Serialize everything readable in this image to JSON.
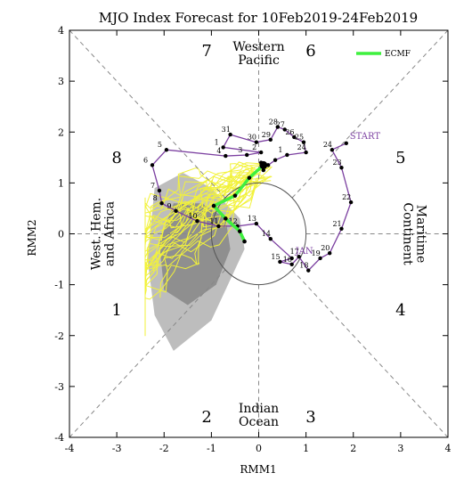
{
  "chart_data": {
    "type": "line",
    "title": "MJO Index Forecast for 10Feb2019-24Feb2019",
    "xlabel": "RMM1",
    "ylabel": "RMM2",
    "xlim": [
      -4,
      4
    ],
    "ylim": [
      -4,
      4
    ],
    "xticks": [
      -4,
      -3,
      -2,
      -1,
      0,
      1,
      2,
      3,
      4
    ],
    "yticks": [
      -4,
      -3,
      -2,
      -1,
      0,
      1,
      2,
      3,
      4
    ],
    "grid": false,
    "legend_position": "top-right",
    "phase_labels": [
      {
        "text": "1",
        "x": -3.0,
        "y": -1.5
      },
      {
        "text": "2",
        "x": -1.1,
        "y": -3.6
      },
      {
        "text": "3",
        "x": 1.1,
        "y": -3.6
      },
      {
        "text": "4",
        "x": 3.0,
        "y": -1.5
      },
      {
        "text": "5",
        "x": 3.0,
        "y": 1.5
      },
      {
        "text": "6",
        "x": 1.1,
        "y": 3.6
      },
      {
        "text": "7",
        "x": -1.1,
        "y": 3.6
      },
      {
        "text": "8",
        "x": -3.0,
        "y": 1.5
      }
    ],
    "region_labels": [
      {
        "lines": [
          "Western",
          "Pacific"
        ],
        "x": 0.0,
        "y": 3.55,
        "rotate": 0
      },
      {
        "lines": [
          "Indian",
          "Ocean"
        ],
        "x": 0.0,
        "y": -3.55,
        "rotate": 0
      },
      {
        "lines": [
          "West. Hem.",
          "and Africa"
        ],
        "x": -3.3,
        "y": 0.0,
        "rotate": -90
      },
      {
        "lines": [
          "Maritime",
          "Continent"
        ],
        "x": 3.3,
        "y": 0.0,
        "rotate": 90
      }
    ],
    "observed": {
      "color": "#7b3fa0",
      "points": [
        {
          "x": 1.85,
          "y": 1.78,
          "label": "START"
        },
        {
          "x": 1.55,
          "y": 1.65,
          "label": "24"
        },
        {
          "x": 1.75,
          "y": 1.3,
          "label": "23"
        },
        {
          "x": 1.95,
          "y": 0.62,
          "label": "22"
        },
        {
          "x": 1.75,
          "y": 0.1,
          "label": "21"
        },
        {
          "x": 1.5,
          "y": -0.38,
          "label": "20"
        },
        {
          "x": 1.3,
          "y": -0.48,
          "label": "19"
        },
        {
          "x": 1.05,
          "y": -0.72,
          "label": "18"
        },
        {
          "x": 0.85,
          "y": -0.45,
          "label": "17"
        },
        {
          "x": 0.7,
          "y": -0.6,
          "label": "16"
        },
        {
          "x": 0.45,
          "y": -0.55,
          "label": "15"
        },
        {
          "x": 0.7,
          "y": -0.48,
          "label": "JAN"
        },
        {
          "x": 0.25,
          "y": -0.1,
          "label": "14"
        },
        {
          "x": -0.05,
          "y": 0.2,
          "label": "13"
        },
        {
          "x": -0.45,
          "y": 0.15,
          "label": "12"
        },
        {
          "x": -0.85,
          "y": 0.15,
          "label": "11"
        },
        {
          "x": -1.3,
          "y": 0.25,
          "label": "10"
        },
        {
          "x": -1.75,
          "y": 0.45,
          "label": "9"
        },
        {
          "x": -2.05,
          "y": 0.6,
          "label": "8"
        },
        {
          "x": -2.1,
          "y": 0.85,
          "label": "7"
        },
        {
          "x": -2.25,
          "y": 1.35,
          "label": "6"
        },
        {
          "x": -1.95,
          "y": 1.65,
          "label": "5"
        },
        {
          "x": -0.7,
          "y": 1.53,
          "label": "4"
        },
        {
          "x": -0.25,
          "y": 1.55,
          "label": "3"
        },
        {
          "x": 0.05,
          "y": 1.6,
          "label": "2"
        },
        {
          "x": -0.75,
          "y": 1.7,
          "label": "1"
        },
        {
          "x": -0.6,
          "y": 1.95,
          "label": "31"
        },
        {
          "x": -0.05,
          "y": 1.8,
          "label": "30"
        },
        {
          "x": 0.25,
          "y": 1.85,
          "label": "29"
        },
        {
          "x": 0.4,
          "y": 2.1,
          "label": "28"
        },
        {
          "x": 0.55,
          "y": 2.05,
          "label": "27"
        },
        {
          "x": 0.75,
          "y": 1.9,
          "label": "26"
        },
        {
          "x": 0.95,
          "y": 1.8,
          "label": "25"
        },
        {
          "x": 1.0,
          "y": 1.6,
          "label": "24"
        },
        {
          "x": 0.6,
          "y": 1.55,
          "label": "1"
        },
        {
          "x": 0.35,
          "y": 1.45,
          "label": ""
        },
        {
          "x": 0.2,
          "y": 1.35,
          "label": ""
        },
        {
          "x": 0.05,
          "y": 1.4,
          "label": ""
        },
        {
          "x": 0.1,
          "y": 1.25,
          "label": ""
        }
      ]
    },
    "end_marker": {
      "x": 0.1,
      "y": 1.35
    },
    "series": [
      {
        "name": "ECMF",
        "color": "#3ef03e",
        "points": [
          {
            "x": 0.1,
            "y": 1.35
          },
          {
            "x": -0.2,
            "y": 1.1
          },
          {
            "x": -0.5,
            "y": 0.75
          },
          {
            "x": -0.95,
            "y": 0.55
          },
          {
            "x": -0.7,
            "y": 0.3
          },
          {
            "x": -0.4,
            "y": 0.05
          },
          {
            "x": -0.3,
            "y": -0.15
          }
        ]
      }
    ],
    "ensemble_color": "#f2f23a",
    "spread_colors": [
      "#bdbdbd",
      "#8f8f8f"
    ]
  }
}
